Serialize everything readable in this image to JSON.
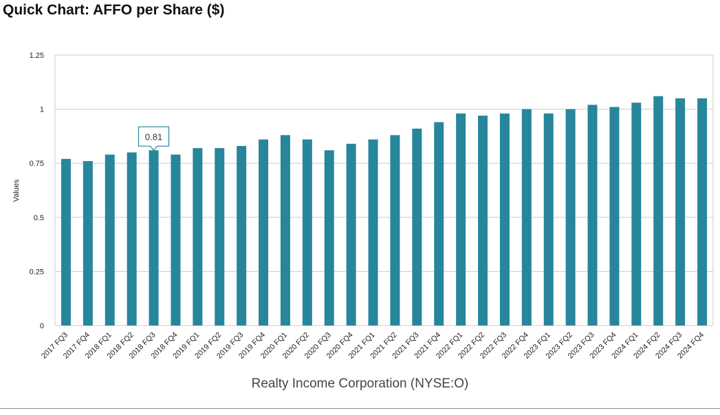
{
  "title": "Quick Chart: AFFO per Share ($)",
  "subtitle": "Realty Income Corporation (NYSE:O)",
  "colors": {
    "bar": "#27869b",
    "grid": "#cccccc",
    "tooltip_border": "#27869b"
  },
  "tooltip": {
    "category": "2018 FQ3",
    "label": "0.81"
  },
  "chart_data": {
    "type": "bar",
    "ylabel": "Values",
    "ylim": [
      0,
      1.25
    ],
    "yticks": [
      {
        "value": 0,
        "label": "0"
      },
      {
        "value": 0.25,
        "label": "0.25"
      },
      {
        "value": 0.5,
        "label": "0.5"
      },
      {
        "value": 0.75,
        "label": "0.75"
      },
      {
        "value": 1,
        "label": "1"
      },
      {
        "value": 1.25,
        "label": "1.25"
      }
    ],
    "grid": true,
    "categories": [
      "2017 FQ3",
      "2017 FQ4",
      "2018 FQ1",
      "2018 FQ2",
      "2018 FQ3",
      "2018 FQ4",
      "2019 FQ1",
      "2019 FQ2",
      "2019 FQ3",
      "2019 FQ4",
      "2020 FQ1",
      "2020 FQ2",
      "2020 FQ3",
      "2020 FQ4",
      "2021 FQ1",
      "2021 FQ2",
      "2021 FQ3",
      "2021 FQ4",
      "2022 FQ1",
      "2022 FQ2",
      "2022 FQ3",
      "2022 FQ4",
      "2023 FQ1",
      "2023 FQ2",
      "2023 FQ3",
      "2023 FQ4",
      "2024 FQ1",
      "2024 FQ2",
      "2024 FQ3",
      "2024 FQ4"
    ],
    "values": [
      0.77,
      0.76,
      0.79,
      0.8,
      0.81,
      0.79,
      0.82,
      0.82,
      0.83,
      0.86,
      0.88,
      0.86,
      0.81,
      0.84,
      0.86,
      0.88,
      0.91,
      0.94,
      0.98,
      0.97,
      0.98,
      1.0,
      0.98,
      1.0,
      1.02,
      1.01,
      1.03,
      1.06,
      1.05,
      1.05
    ]
  }
}
